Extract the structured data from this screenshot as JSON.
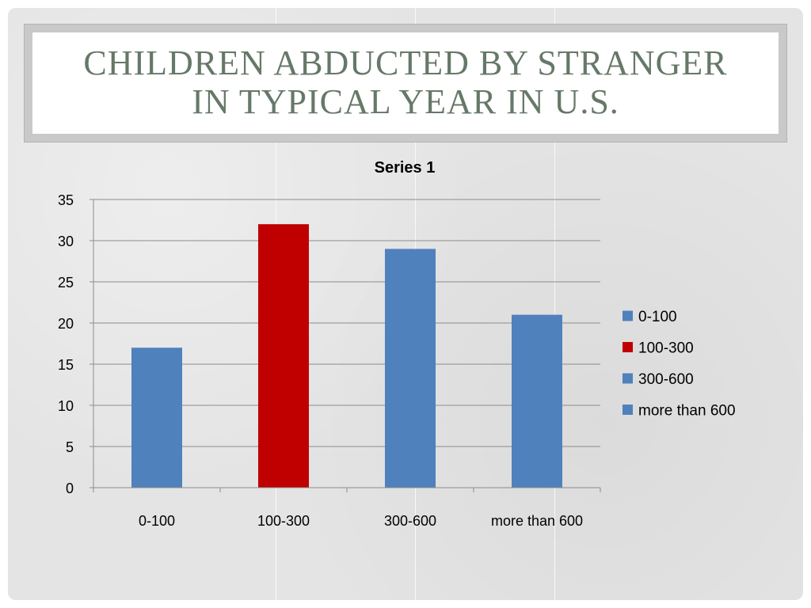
{
  "slide": {
    "title_line1": "CHILDREN ABDUCTED BY STRANGER",
    "title_line2": "IN TYPICAL YEAR IN U.S."
  },
  "chart_data": {
    "type": "bar",
    "title": "Series 1",
    "xlabel": "",
    "ylabel": "",
    "categories": [
      "0-100",
      "100-300",
      "300-600",
      "more than 600"
    ],
    "values": [
      17,
      32,
      29,
      21
    ],
    "colors": [
      "#4F81BD",
      "#C00000",
      "#4F81BD",
      "#4F81BD"
    ],
    "ylim": [
      0,
      35
    ],
    "yticks": [
      0,
      5,
      10,
      15,
      20,
      25,
      30,
      35
    ],
    "grid": true,
    "legend_position": "right",
    "legend": [
      {
        "label": "0-100",
        "color": "#4F81BD"
      },
      {
        "label": "100-300",
        "color": "#C00000"
      },
      {
        "label": "300-600",
        "color": "#4F81BD"
      },
      {
        "label": "more than 600",
        "color": "#4F81BD"
      }
    ]
  }
}
